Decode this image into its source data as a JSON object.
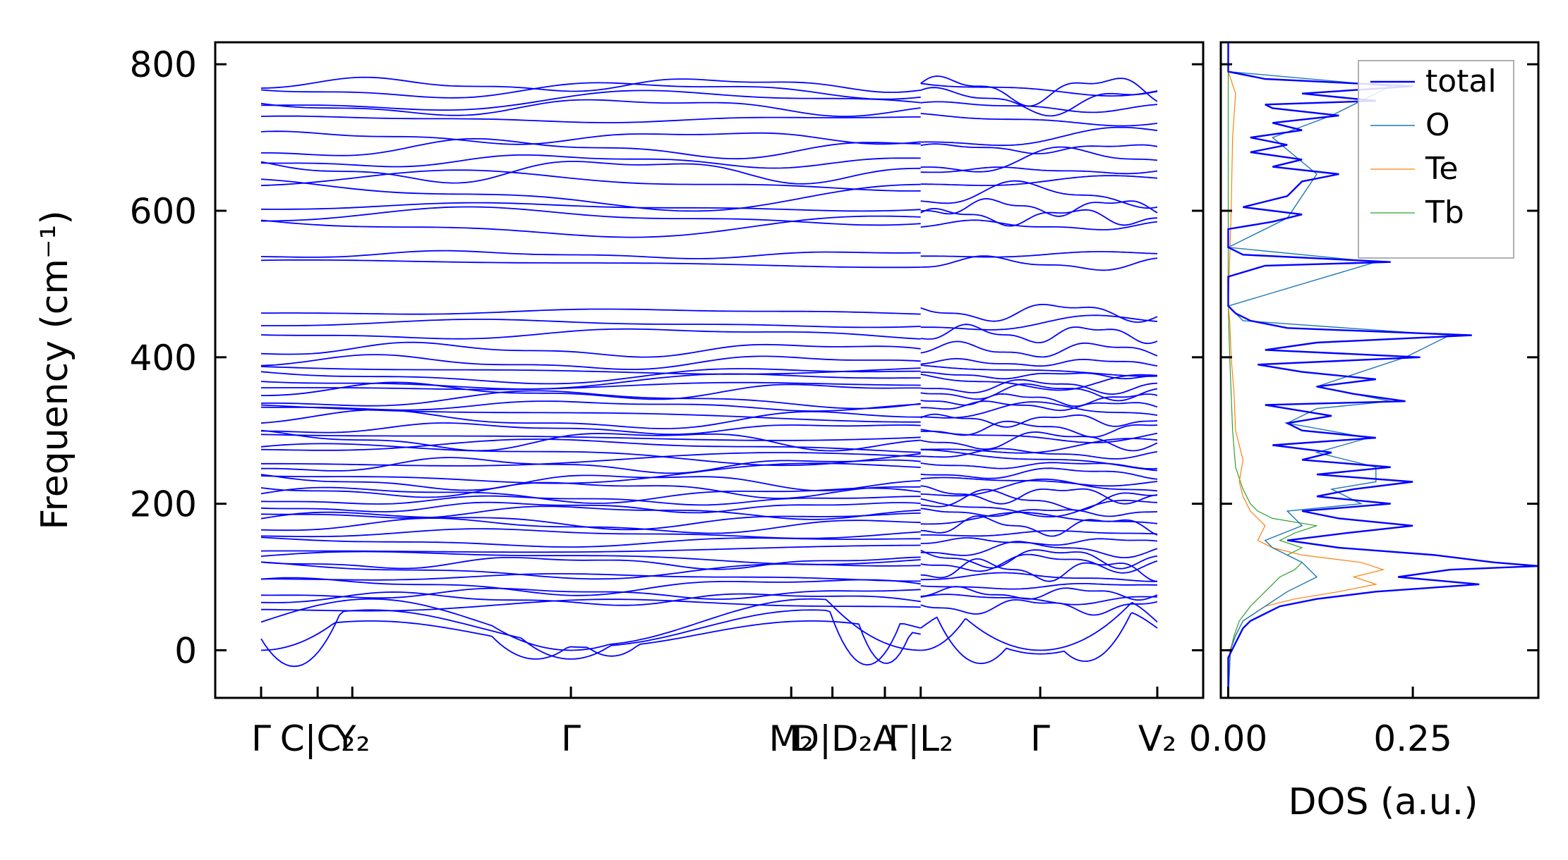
{
  "chart_data": [
    {
      "type": "line",
      "title": "",
      "xlabel": "",
      "ylabel": "Frequency (cm⁻¹)",
      "ylim": [
        -65,
        830
      ],
      "yticks": [
        0,
        200,
        400,
        600,
        800
      ],
      "ytick_labels": [
        "0",
        "200",
        "400",
        "600",
        "800"
      ],
      "band_color": "#0000ff",
      "x_ticks": [
        {
          "pos": 0.0,
          "label": "Γ"
        },
        {
          "pos": 0.0597,
          "label": "C|C₂"
        },
        {
          "pos": 0.0963,
          "label": "Y₂"
        },
        {
          "pos": 0.3271,
          "label": "Γ"
        },
        {
          "pos": 0.5597,
          "label": "M₂"
        },
        {
          "pos": 0.6032,
          "label": "D|D₂"
        },
        {
          "pos": 0.6586,
          "label": "A"
        },
        {
          "pos": 0.6964,
          "label": "Γ|L₂"
        },
        {
          "pos": 0.8226,
          "label": "Γ"
        },
        {
          "pos": 0.9462,
          "label": "V₂"
        }
      ],
      "segment_break": 0.6964,
      "x_end": 0.9462,
      "bands_description": "Dense phonon band structure with many branches between 0 and 790 cm^-1; acoustic branches dip to about -25 cm^-1 near Gamma-related points; a gap between about 470 and 520 cm^-1; flat bands near 530 cm^-1; bands from 580 to 790 cm^-1."
    },
    {
      "type": "line",
      "title": "",
      "xlabel": "DOS (a.u.)",
      "ylabel": "",
      "xlim": [
        -0.01,
        0.42
      ],
      "xticks": [
        0.0,
        0.25
      ],
      "xtick_labels": [
        "0.00",
        "0.25"
      ],
      "ylim": [
        -65,
        830
      ],
      "legend": {
        "placement": "top-right"
      },
      "series": [
        {
          "name": "total",
          "color": "#0000ff",
          "points": [
            [
              -65,
              0
            ],
            [
              -10,
              0.0
            ],
            [
              0,
              0.005
            ],
            [
              10,
              0.01
            ],
            [
              20,
              0.015
            ],
            [
              30,
              0.02
            ],
            [
              40,
              0.03
            ],
            [
              50,
              0.05
            ],
            [
              60,
              0.07
            ],
            [
              70,
              0.12
            ],
            [
              80,
              0.2
            ],
            [
              90,
              0.34
            ],
            [
              100,
              0.23
            ],
            [
              110,
              0.3
            ],
            [
              115,
              0.42
            ],
            [
              120,
              0.36
            ],
            [
              130,
              0.28
            ],
            [
              140,
              0.15
            ],
            [
              150,
              0.08
            ],
            [
              160,
              0.16
            ],
            [
              170,
              0.25
            ],
            [
              180,
              0.15
            ],
            [
              190,
              0.1
            ],
            [
              200,
              0.22
            ],
            [
              210,
              0.12
            ],
            [
              220,
              0.17
            ],
            [
              230,
              0.25
            ],
            [
              240,
              0.12
            ],
            [
              250,
              0.22
            ],
            [
              260,
              0.1
            ],
            [
              270,
              0.14
            ],
            [
              280,
              0.06
            ],
            [
              290,
              0.2
            ],
            [
              300,
              0.1
            ],
            [
              310,
              0.08
            ],
            [
              320,
              0.14
            ],
            [
              335,
              0.05
            ],
            [
              340,
              0.24
            ],
            [
              350,
              0.17
            ],
            [
              360,
              0.12
            ],
            [
              370,
              0.2
            ],
            [
              380,
              0.1
            ],
            [
              390,
              0.04
            ],
            [
              400,
              0.26
            ],
            [
              410,
              0.05
            ],
            [
              420,
              0.12
            ],
            [
              430,
              0.33
            ],
            [
              440,
              0.08
            ],
            [
              450,
              0.03
            ],
            [
              460,
              0.01
            ],
            [
              470,
              0.0
            ],
            [
              510,
              0.0
            ],
            [
              525,
              0.05
            ],
            [
              530,
              0.22
            ],
            [
              540,
              0.02
            ],
            [
              550,
              0.0
            ],
            [
              575,
              0.0
            ],
            [
              585,
              0.06
            ],
            [
              595,
              0.1
            ],
            [
              605,
              0.02
            ],
            [
              620,
              0.08
            ],
            [
              640,
              0.1
            ],
            [
              650,
              0.15
            ],
            [
              660,
              0.06
            ],
            [
              670,
              0.1
            ],
            [
              680,
              0.03
            ],
            [
              690,
              0.08
            ],
            [
              700,
              0.03
            ],
            [
              710,
              0.1
            ],
            [
              720,
              0.06
            ],
            [
              730,
              0.15
            ],
            [
              740,
              0.06
            ],
            [
              745,
              0.05
            ],
            [
              750,
              0.2
            ],
            [
              760,
              0.1
            ],
            [
              770,
              0.25
            ],
            [
              780,
              0.05
            ],
            [
              790,
              0.0
            ],
            [
              830,
              0.0
            ]
          ]
        },
        {
          "name": "O",
          "color": "#1f77b4",
          "points": [
            [
              -65,
              0
            ],
            [
              0,
              0.003
            ],
            [
              20,
              0.01
            ],
            [
              40,
              0.02
            ],
            [
              60,
              0.05
            ],
            [
              80,
              0.08
            ],
            [
              100,
              0.12
            ],
            [
              120,
              0.1
            ],
            [
              140,
              0.06
            ],
            [
              150,
              0.05
            ],
            [
              170,
              0.1
            ],
            [
              190,
              0.08
            ],
            [
              200,
              0.18
            ],
            [
              220,
              0.14
            ],
            [
              230,
              0.2
            ],
            [
              250,
              0.2
            ],
            [
              270,
              0.12
            ],
            [
              290,
              0.19
            ],
            [
              310,
              0.08
            ],
            [
              330,
              0.12
            ],
            [
              340,
              0.22
            ],
            [
              360,
              0.12
            ],
            [
              380,
              0.18
            ],
            [
              400,
              0.24
            ],
            [
              430,
              0.3
            ],
            [
              450,
              0.02
            ],
            [
              470,
              0.0
            ],
            [
              530,
              0.2
            ],
            [
              550,
              0.0
            ],
            [
              590,
              0.08
            ],
            [
              650,
              0.12
            ],
            [
              700,
              0.06
            ],
            [
              730,
              0.14
            ],
            [
              750,
              0.18
            ],
            [
              770,
              0.22
            ],
            [
              790,
              0.0
            ],
            [
              830,
              0.0
            ]
          ]
        },
        {
          "name": "Te",
          "color": "#ff7f0e",
          "points": [
            [
              -65,
              0
            ],
            [
              0,
              0.002
            ],
            [
              20,
              0.01
            ],
            [
              40,
              0.02
            ],
            [
              60,
              0.05
            ],
            [
              70,
              0.09
            ],
            [
              80,
              0.15
            ],
            [
              90,
              0.2
            ],
            [
              100,
              0.17
            ],
            [
              110,
              0.21
            ],
            [
              120,
              0.18
            ],
            [
              130,
              0.1
            ],
            [
              140,
              0.06
            ],
            [
              150,
              0.04
            ],
            [
              170,
              0.05
            ],
            [
              190,
              0.03
            ],
            [
              210,
              0.02
            ],
            [
              230,
              0.015
            ],
            [
              260,
              0.02
            ],
            [
              300,
              0.01
            ],
            [
              350,
              0.008
            ],
            [
              400,
              0.004
            ],
            [
              450,
              0.002
            ],
            [
              470,
              0.0
            ],
            [
              600,
              0.004
            ],
            [
              700,
              0.006
            ],
            [
              760,
              0.01
            ],
            [
              790,
              0.0
            ],
            [
              830,
              0.0
            ]
          ]
        },
        {
          "name": "Tb",
          "color": "#2ca02c",
          "points": [
            [
              -65,
              0
            ],
            [
              0,
              0.003
            ],
            [
              20,
              0.008
            ],
            [
              40,
              0.015
            ],
            [
              60,
              0.03
            ],
            [
              80,
              0.05
            ],
            [
              90,
              0.06
            ],
            [
              100,
              0.07
            ],
            [
              110,
              0.09
            ],
            [
              120,
              0.1
            ],
            [
              130,
              0.08
            ],
            [
              140,
              0.1
            ],
            [
              150,
              0.07
            ],
            [
              160,
              0.09
            ],
            [
              170,
              0.12
            ],
            [
              180,
              0.06
            ],
            [
              190,
              0.04
            ],
            [
              200,
              0.03
            ],
            [
              220,
              0.02
            ],
            [
              250,
              0.01
            ],
            [
              300,
              0.006
            ],
            [
              350,
              0.004
            ],
            [
              400,
              0.002
            ],
            [
              470,
              0.0
            ],
            [
              830,
              0.0
            ]
          ]
        }
      ]
    }
  ]
}
